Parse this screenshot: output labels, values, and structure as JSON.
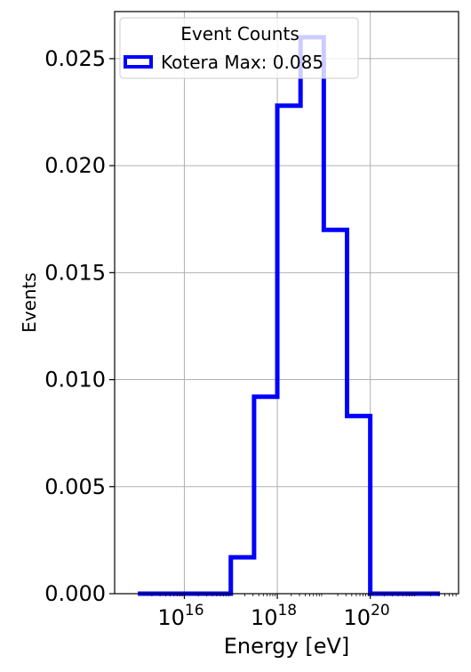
{
  "chart_data": {
    "type": "histogram",
    "title": "",
    "xlabel": "Energy [eV]",
    "ylabel": "Events",
    "x_scale": "log",
    "xlim_exponent": [
      14.5,
      21.9
    ],
    "ylim": [
      0,
      0.0272
    ],
    "grid": true,
    "legend": {
      "title": "Event Counts",
      "placement": "top-left",
      "entries": [
        {
          "label": "Kotera Max: 0.085",
          "color": "#0000ff"
        }
      ]
    },
    "x_ticks": [
      {
        "exponent": 16,
        "base": "10",
        "exp_label": "16"
      },
      {
        "exponent": 18,
        "base": "10",
        "exp_label": "18"
      },
      {
        "exponent": 20,
        "base": "10",
        "exp_label": "20"
      }
    ],
    "y_ticks": [
      {
        "value": 0.0,
        "label": "0.000"
      },
      {
        "value": 0.005,
        "label": "0.005"
      },
      {
        "value": 0.01,
        "label": "0.010"
      },
      {
        "value": 0.015,
        "label": "0.015"
      },
      {
        "value": 0.02,
        "label": "0.020"
      },
      {
        "value": 0.025,
        "label": "0.025"
      }
    ],
    "series": [
      {
        "name": "Kotera Max: 0.085",
        "color": "#0000ff",
        "bin_edges_exponent": [
          15,
          15.5,
          16,
          16.5,
          17,
          17.5,
          18,
          18.5,
          19,
          19.5,
          20,
          20.5,
          21,
          21.5
        ],
        "values": [
          0,
          0,
          0,
          0,
          0.0017,
          0.0092,
          0.0228,
          0.026,
          0.017,
          0.0083,
          0,
          0,
          0
        ]
      }
    ]
  }
}
